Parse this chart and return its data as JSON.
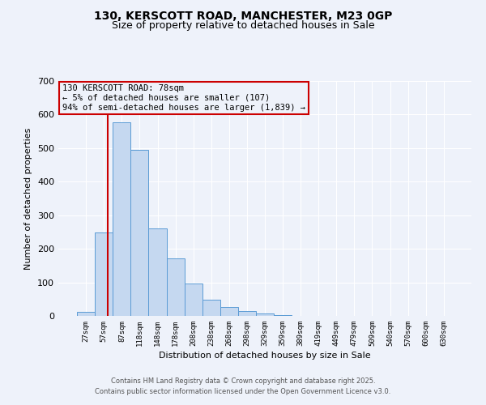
{
  "title_line1": "130, KERSCOTT ROAD, MANCHESTER, M23 0GP",
  "title_line2": "Size of property relative to detached houses in Sale",
  "xlabel": "Distribution of detached houses by size in Sale",
  "ylabel": "Number of detached properties",
  "bar_labels": [
    "27sqm",
    "57sqm",
    "87sqm",
    "118sqm",
    "148sqm",
    "178sqm",
    "208sqm",
    "238sqm",
    "268sqm",
    "298sqm",
    "329sqm",
    "359sqm",
    "389sqm",
    "419sqm",
    "449sqm",
    "479sqm",
    "509sqm",
    "540sqm",
    "570sqm",
    "600sqm",
    "630sqm"
  ],
  "bar_values": [
    12,
    248,
    578,
    495,
    260,
    172,
    97,
    48,
    27,
    15,
    8,
    2,
    0,
    0,
    0,
    0,
    0,
    0,
    0,
    0,
    0
  ],
  "bar_color": "#c5d8f0",
  "bar_edge_color": "#5b9bd5",
  "annotation_title": "130 KERSCOTT ROAD: 78sqm",
  "annotation_line2": "← 5% of detached houses are smaller (107)",
  "annotation_line3": "94% of semi-detached houses are larger (1,839) →",
  "vline_color": "#cc0000",
  "ylim": [
    0,
    700
  ],
  "yticks": [
    0,
    100,
    200,
    300,
    400,
    500,
    600,
    700
  ],
  "footer_line1": "Contains HM Land Registry data © Crown copyright and database right 2025.",
  "footer_line2": "Contains public sector information licensed under the Open Government Licence v3.0.",
  "bg_color": "#eef2fa",
  "grid_color": "#ffffff",
  "annotation_box_edge": "#cc0000",
  "title_fontsize": 10,
  "subtitle_fontsize": 9
}
